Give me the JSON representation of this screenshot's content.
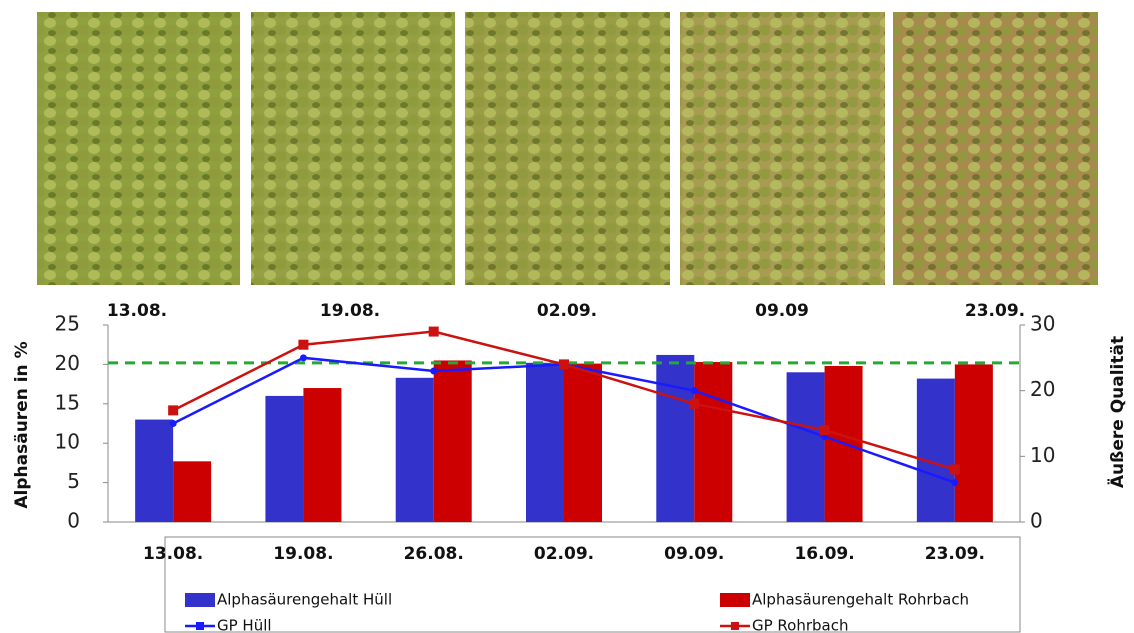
{
  "chart_data": {
    "type": "bar",
    "photo_dates": [
      "13.08.",
      "19.08.",
      "02.09.",
      "09.09",
      "23.09."
    ],
    "y_label": "Alphasäuren in %",
    "y2_label": "Äußere Qualität",
    "categories": [
      "13.08.",
      "19.08.",
      "26.08.",
      "02.09.",
      "09.09.",
      "16.09.",
      "23.09."
    ],
    "series": [
      {
        "name": "Alphasäurengehalt Hüll",
        "type": "bar",
        "color": "#3333cc",
        "values": [
          13,
          16,
          18.3,
          20.2,
          21.2,
          19,
          18.2
        ]
      },
      {
        "name": "Alphasäurengehalt Rohrbach",
        "type": "bar",
        "color": "#cc0000",
        "values": [
          7.7,
          17,
          20.5,
          20.1,
          20.3,
          19.8,
          20
        ]
      },
      {
        "name": "GP Hüll",
        "type": "line",
        "axis": "y2",
        "color": "#1a1aff",
        "values": [
          15,
          25,
          23,
          24,
          20,
          13,
          6
        ]
      },
      {
        "name": "GP Rohrbach",
        "type": "line",
        "axis": "y2",
        "color": "#cc1111",
        "values": [
          17,
          27,
          29,
          24,
          18,
          14,
          8
        ]
      }
    ],
    "reference_line": {
      "value": 20.2,
      "color": "#22aa33"
    },
    "ylim": [
      0,
      25
    ],
    "yticks": [
      0,
      5,
      10,
      15,
      20,
      25
    ],
    "y2lim": [
      0,
      30
    ],
    "y2ticks": [
      0,
      10,
      20,
      30
    ]
  }
}
